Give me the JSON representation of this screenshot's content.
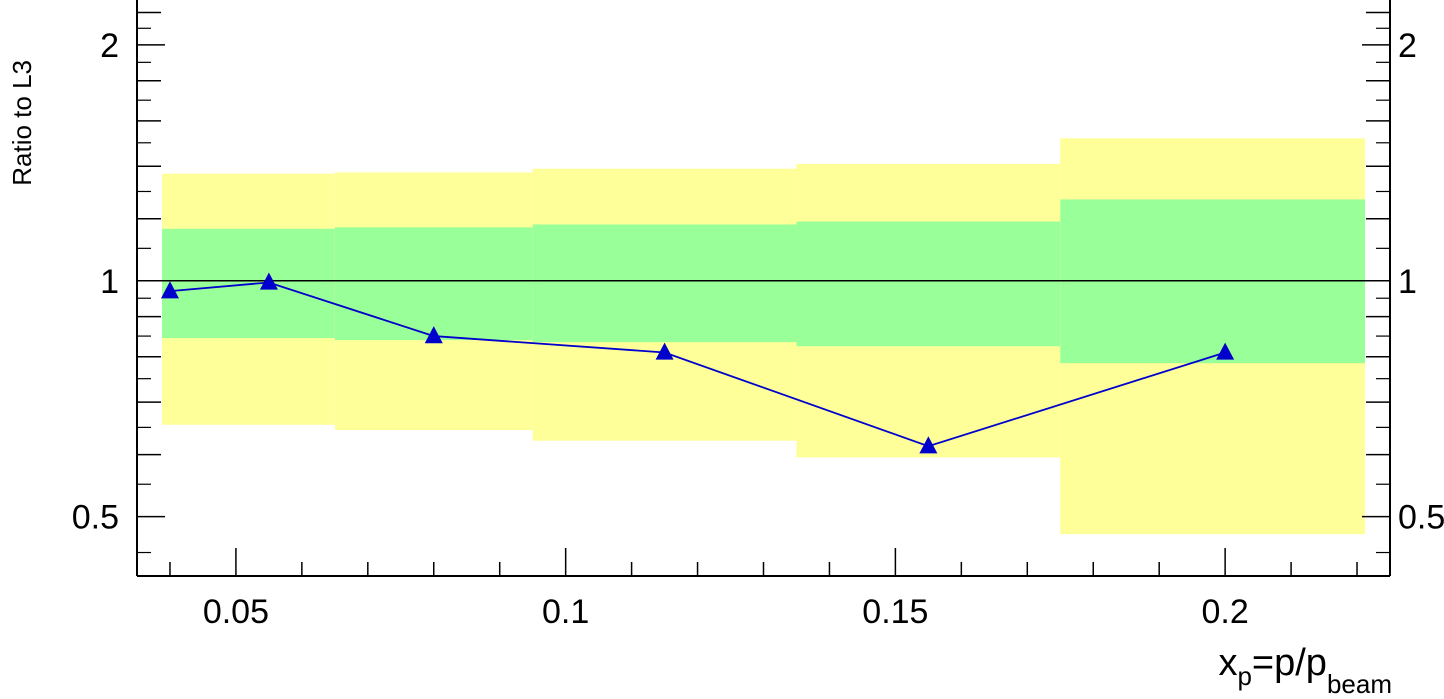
{
  "chart_data": {
    "type": "line",
    "xlabel": {
      "main": "x",
      "sub1": "p",
      "mid": "=p/p",
      "sub2": "beam"
    },
    "ylabel": "Ratio to L3",
    "xlim": [
      0.035,
      0.225
    ],
    "ylim": [
      0.42,
      2.35
    ],
    "y_scale": "log",
    "x_ticks": [
      {
        "value": 0.05,
        "label": "0.05"
      },
      {
        "value": 0.1,
        "label": "0.1"
      },
      {
        "value": 0.15,
        "label": "0.15"
      },
      {
        "value": 0.2,
        "label": "0.2"
      }
    ],
    "y_ticks": [
      {
        "value": 0.5,
        "label": "0.5"
      },
      {
        "value": 1,
        "label": "1"
      },
      {
        "value": 2,
        "label": "2"
      }
    ],
    "right_y_tick_labels": [
      {
        "value": 0.5,
        "label": "0.5"
      },
      {
        "value": 1,
        "label": "1"
      },
      {
        "value": 2,
        "label": "2"
      }
    ],
    "reference_line": 1,
    "bands": [
      {
        "x0": 0.035,
        "x1": 0.065,
        "inner": [
          0.845,
          1.165
        ],
        "outer": [
          0.655,
          1.37
        ]
      },
      {
        "x0": 0.065,
        "x1": 0.095,
        "inner": [
          0.84,
          1.17
        ],
        "outer": [
          0.645,
          1.375
        ]
      },
      {
        "x0": 0.095,
        "x1": 0.135,
        "inner": [
          0.835,
          1.18
        ],
        "outer": [
          0.625,
          1.39
        ]
      },
      {
        "x0": 0.135,
        "x1": 0.175,
        "inner": [
          0.825,
          1.19
        ],
        "outer": [
          0.595,
          1.41
        ]
      },
      {
        "x0": 0.175,
        "x1": 0.225,
        "inner": [
          0.785,
          1.27
        ],
        "outer": [
          0.475,
          1.52
        ]
      }
    ],
    "series": [
      {
        "color": "#0000cc",
        "marker": "triangle",
        "x": [
          0.04,
          0.055,
          0.08,
          0.115,
          0.155,
          0.2
        ],
        "y": [
          0.97,
          0.995,
          0.85,
          0.81,
          0.615,
          0.81
        ]
      }
    ],
    "colors": {
      "outer_band": "#ffff99",
      "inner_band": "#99ff99",
      "series": "#0000cc",
      "axis": "#000000"
    }
  }
}
